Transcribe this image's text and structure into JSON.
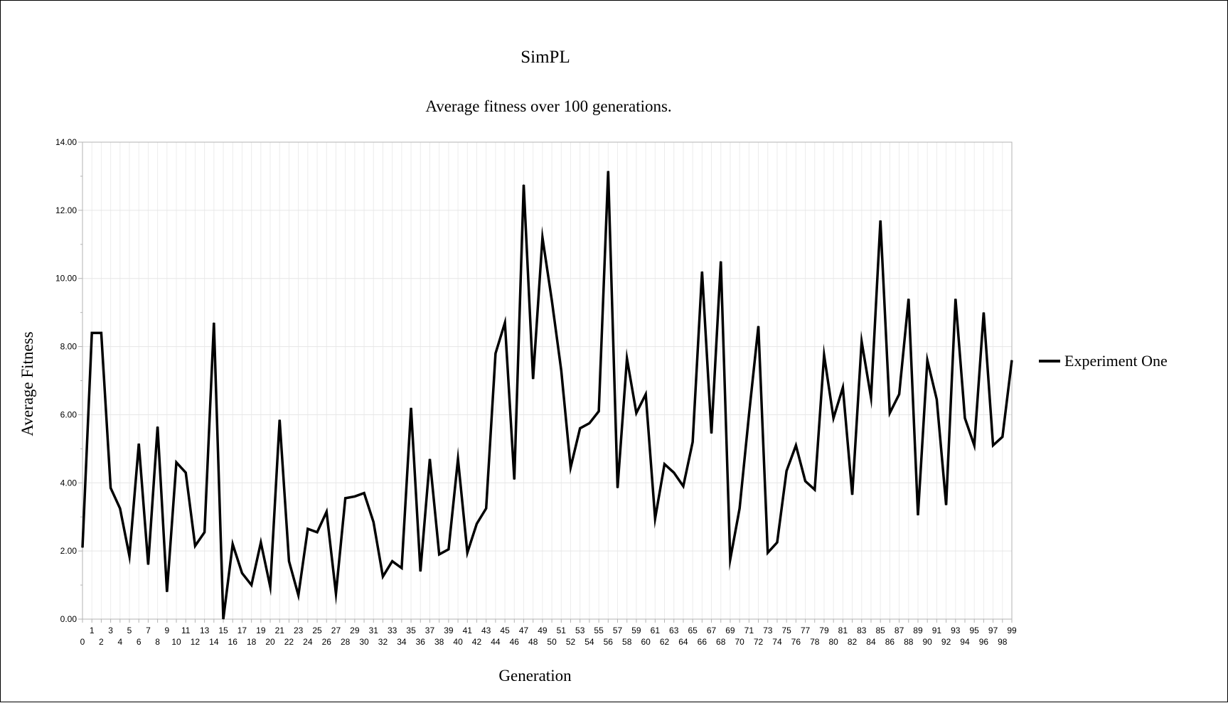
{
  "chart_data": {
    "type": "line",
    "title": "SimPL",
    "subtitle": "Average fitness over 100 generations.",
    "xlabel": "Generation",
    "ylabel": "Average Fitness",
    "ylim": [
      0,
      14
    ],
    "yticks": [
      "0.00",
      "2.00",
      "4.00",
      "6.00",
      "8.00",
      "10.00",
      "12.00",
      "14.00"
    ],
    "grid": true,
    "legend_position": "right",
    "x": [
      0,
      1,
      2,
      3,
      4,
      5,
      6,
      7,
      8,
      9,
      10,
      11,
      12,
      13,
      14,
      15,
      16,
      17,
      18,
      19,
      20,
      21,
      22,
      23,
      24,
      25,
      26,
      27,
      28,
      29,
      30,
      31,
      32,
      33,
      34,
      35,
      36,
      37,
      38,
      39,
      40,
      41,
      42,
      43,
      44,
      45,
      46,
      47,
      48,
      49,
      50,
      51,
      52,
      53,
      54,
      55,
      56,
      57,
      58,
      59,
      60,
      61,
      62,
      63,
      64,
      65,
      66,
      67,
      68,
      69,
      70,
      71,
      72,
      73,
      74,
      75,
      76,
      77,
      78,
      79,
      80,
      81,
      82,
      83,
      84,
      85,
      86,
      87,
      88,
      89,
      90,
      91,
      92,
      93,
      94,
      95,
      96,
      97,
      98,
      99
    ],
    "series": [
      {
        "name": "Experiment One",
        "color": "#000000",
        "values": [
          2.1,
          8.4,
          8.4,
          3.85,
          3.25,
          1.85,
          5.15,
          1.6,
          5.65,
          0.8,
          4.6,
          4.3,
          2.15,
          2.55,
          8.7,
          0.0,
          2.2,
          1.35,
          1.0,
          2.25,
          0.95,
          5.85,
          1.7,
          0.7,
          2.65,
          2.55,
          3.15,
          0.75,
          3.55,
          3.6,
          3.7,
          2.85,
          1.25,
          1.7,
          1.5,
          6.2,
          1.4,
          4.7,
          1.9,
          2.05,
          4.7,
          1.95,
          2.8,
          3.25,
          7.8,
          8.7,
          4.1,
          12.75,
          7.05,
          11.2,
          9.35,
          7.3,
          4.45,
          5.6,
          5.75,
          6.1,
          13.15,
          3.85,
          7.65,
          6.05,
          6.6,
          2.95,
          4.55,
          4.3,
          3.9,
          5.2,
          10.2,
          5.45,
          10.5,
          1.75,
          3.25,
          6.0,
          8.6,
          1.95,
          2.25,
          4.35,
          5.1,
          4.05,
          3.8,
          7.75,
          5.9,
          6.8,
          3.65,
          8.15,
          6.5,
          11.7,
          6.05,
          6.6,
          9.4,
          3.05,
          7.6,
          6.45,
          3.35,
          9.4,
          5.9,
          5.1,
          9.0,
          5.1,
          5.35,
          7.6
        ]
      }
    ]
  }
}
